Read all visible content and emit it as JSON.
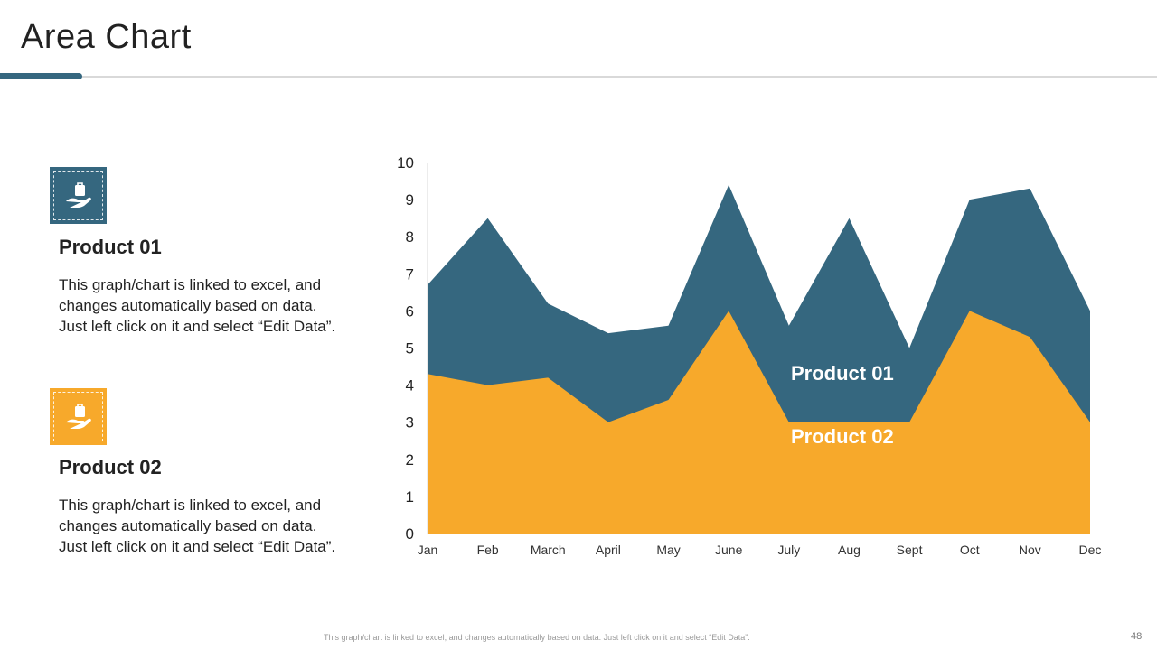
{
  "page": {
    "title": "Area Chart",
    "footer_note": "This graph/chart is linked to excel, and changes automatically based on data. Just left click on it and select “Edit Data”.",
    "page_number": "48"
  },
  "products": [
    {
      "heading": "Product 01",
      "desc_lines": [
        "This graph/chart is linked to excel, and",
        "changes automatically based on data.",
        "Just left click on it and select “Edit Data”."
      ],
      "icon": "hand-holding-bag-icon",
      "color": "#35677f"
    },
    {
      "heading": "Product 02",
      "desc_lines": [
        "This graph/chart is linked to excel, and",
        "changes automatically based on data.",
        "Just left click on it and select “Edit Data”."
      ],
      "icon": "hand-holding-bag-icon",
      "color": "#f7a92b"
    }
  ],
  "chart_data": {
    "type": "area",
    "categories": [
      "Jan",
      "Feb",
      "March",
      "April",
      "May",
      "June",
      "July",
      "Aug",
      "Sept",
      "Oct",
      "Nov",
      "Dec"
    ],
    "series": [
      {
        "name": "Product 01",
        "color": "#35677f",
        "values": [
          6.7,
          8.5,
          6.2,
          5.4,
          5.6,
          9.4,
          5.6,
          8.5,
          5.0,
          9.0,
          9.3,
          6.0
        ]
      },
      {
        "name": "Product 02",
        "color": "#f7a92b",
        "values": [
          4.3,
          4.0,
          4.2,
          3.0,
          3.6,
          6.0,
          3.0,
          3.0,
          3.0,
          6.0,
          5.3,
          3.0
        ]
      }
    ],
    "yticks": [
      "0",
      "1",
      "2",
      "3",
      "4",
      "5",
      "6",
      "7",
      "8",
      "9",
      "10"
    ],
    "ylim": [
      0,
      10
    ],
    "labels": [
      "Product 01",
      "Product 02"
    ],
    "title": "",
    "xlabel": "",
    "ylabel": ""
  }
}
